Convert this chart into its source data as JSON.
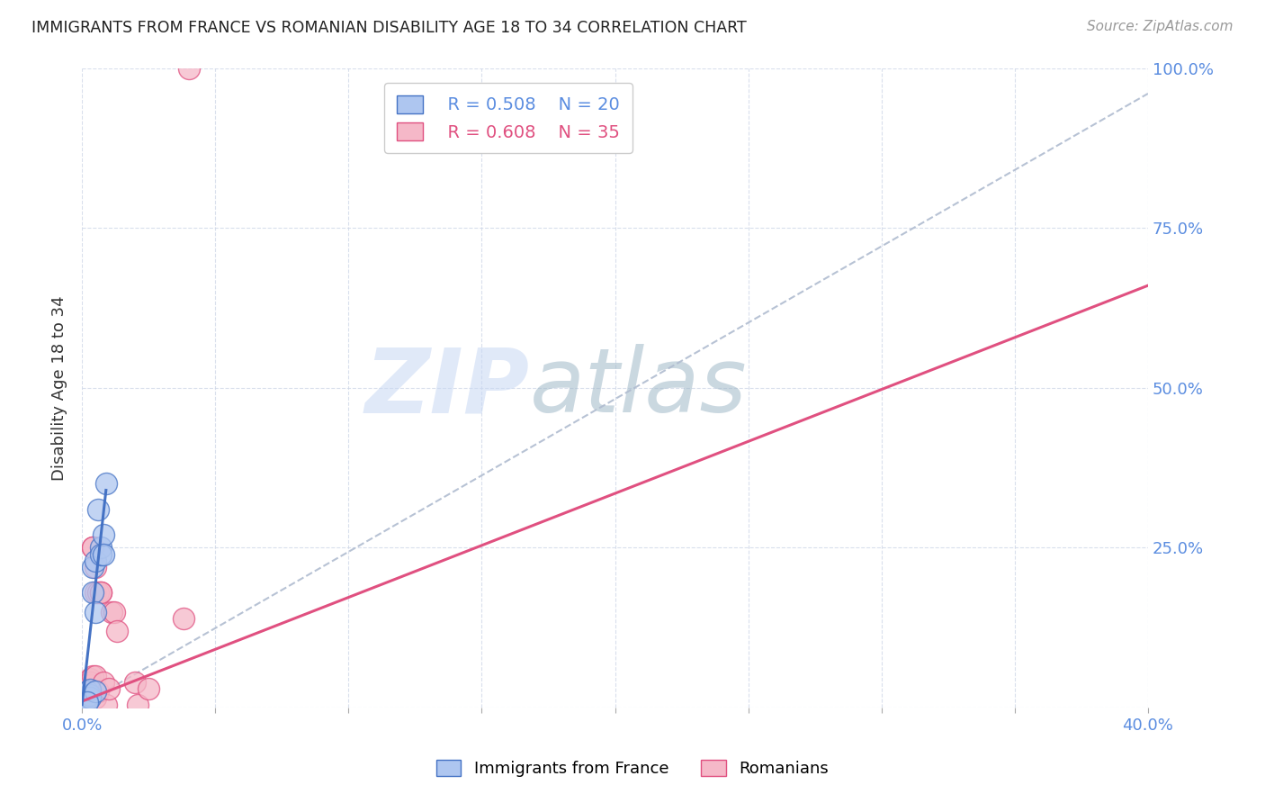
{
  "title": "IMMIGRANTS FROM FRANCE VS ROMANIAN DISABILITY AGE 18 TO 34 CORRELATION CHART",
  "source": "Source: ZipAtlas.com",
  "ylabel": "Disability Age 18 to 34",
  "xlim": [
    0.0,
    0.4
  ],
  "ylim": [
    0.0,
    1.0
  ],
  "france_R": 0.508,
  "france_N": 20,
  "romanian_R": 0.608,
  "romanian_N": 35,
  "france_color": "#aec6f0",
  "romanian_color": "#f5b8c8",
  "france_line_color": "#4472c4",
  "romanian_line_color": "#e05080",
  "dashed_line_color": "#b0bcd0",
  "watermark_zip": "ZIP",
  "watermark_atlas": "atlas",
  "france_points": [
    [
      0.001,
      0.02
    ],
    [
      0.001,
      0.015
    ],
    [
      0.002,
      0.025
    ],
    [
      0.002,
      0.01
    ],
    [
      0.002,
      0.018
    ],
    [
      0.003,
      0.02
    ],
    [
      0.003,
      0.015
    ],
    [
      0.003,
      0.028
    ],
    [
      0.004,
      0.22
    ],
    [
      0.004,
      0.18
    ],
    [
      0.005,
      0.23
    ],
    [
      0.005,
      0.15
    ],
    [
      0.005,
      0.025
    ],
    [
      0.006,
      0.31
    ],
    [
      0.007,
      0.25
    ],
    [
      0.007,
      0.24
    ],
    [
      0.008,
      0.27
    ],
    [
      0.008,
      0.24
    ],
    [
      0.009,
      0.35
    ],
    [
      0.002,
      0.008
    ]
  ],
  "romanian_points": [
    [
      0.001,
      0.02
    ],
    [
      0.001,
      0.01
    ],
    [
      0.001,
      0.025
    ],
    [
      0.002,
      0.03
    ],
    [
      0.002,
      0.015
    ],
    [
      0.002,
      0.02
    ],
    [
      0.002,
      0.005
    ],
    [
      0.002,
      0.025
    ],
    [
      0.003,
      0.045
    ],
    [
      0.003,
      0.02
    ],
    [
      0.003,
      0.035
    ],
    [
      0.003,
      0.025
    ],
    [
      0.003,
      0.04
    ],
    [
      0.004,
      0.05
    ],
    [
      0.004,
      0.25
    ],
    [
      0.004,
      0.25
    ],
    [
      0.005,
      0.22
    ],
    [
      0.005,
      0.05
    ],
    [
      0.005,
      0.18
    ],
    [
      0.005,
      0.015
    ],
    [
      0.006,
      0.025
    ],
    [
      0.006,
      0.18
    ],
    [
      0.007,
      0.18
    ],
    [
      0.007,
      0.18
    ],
    [
      0.008,
      0.04
    ],
    [
      0.009,
      0.005
    ],
    [
      0.01,
      0.03
    ],
    [
      0.011,
      0.15
    ],
    [
      0.012,
      0.15
    ],
    [
      0.013,
      0.12
    ],
    [
      0.02,
      0.04
    ],
    [
      0.021,
      0.005
    ],
    [
      0.025,
      0.03
    ],
    [
      0.038,
      0.14
    ],
    [
      0.04,
      1.0
    ]
  ],
  "france_trend_x": [
    0.0,
    0.009
  ],
  "france_trend_y": [
    0.005,
    0.34
  ],
  "romanian_trend_x": [
    0.0,
    0.4
  ],
  "romanian_trend_y": [
    0.01,
    0.66
  ],
  "dashed_trend_x": [
    0.0,
    0.4
  ],
  "dashed_trend_y": [
    0.005,
    0.96
  ]
}
